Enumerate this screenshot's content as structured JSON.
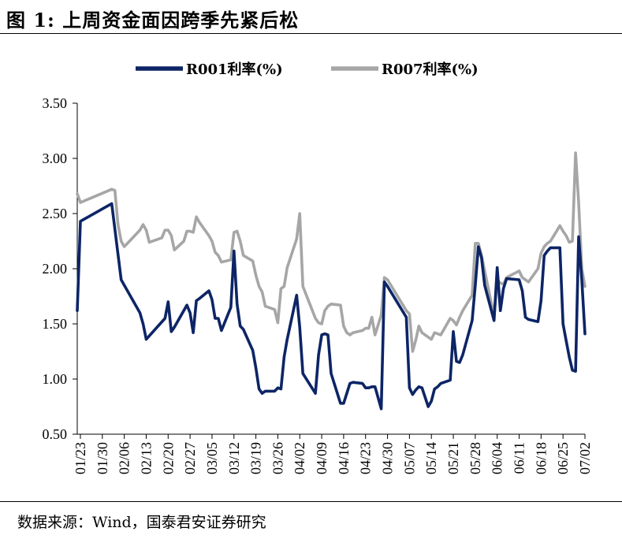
{
  "figure": {
    "title": "图 1:  上周资金面因跨季先紧后松",
    "source": "数据来源：Wind，国泰君安证券研究"
  },
  "chart_data": {
    "type": "line",
    "ylim": [
      0.5,
      3.5
    ],
    "yticks": [
      "0.50",
      "1.00",
      "1.50",
      "2.00",
      "2.50",
      "3.00",
      "3.50"
    ],
    "xtick_labels": [
      "01/23",
      "01/30",
      "02/06",
      "02/13",
      "02/20",
      "02/27",
      "03/05",
      "03/12",
      "03/19",
      "03/26",
      "04/02",
      "04/09",
      "04/16",
      "04/23",
      "04/30",
      "05/07",
      "05/14",
      "05/21",
      "05/28",
      "06/04",
      "06/11",
      "06/18",
      "06/25",
      "07/02"
    ],
    "x_start": "01/22",
    "x_end": "07/02",
    "legend_position": "top",
    "grid": false,
    "series": [
      {
        "name": "R001利率(%)",
        "color": "#0d2566",
        "points": [
          [
            "01/22",
            1.62
          ],
          [
            "01/23",
            2.43
          ],
          [
            "02/02",
            2.59
          ],
          [
            "02/05",
            1.9
          ],
          [
            "02/08",
            1.75
          ],
          [
            "02/11",
            1.6
          ],
          [
            "02/12",
            1.5
          ],
          [
            "02/13",
            1.36
          ],
          [
            "02/19",
            1.55
          ],
          [
            "02/20",
            1.7
          ],
          [
            "02/21",
            1.43
          ],
          [
            "02/22",
            1.47
          ],
          [
            "02/26",
            1.67
          ],
          [
            "02/27",
            1.6
          ],
          [
            "02/28",
            1.42
          ],
          [
            "02/29",
            1.71
          ],
          [
            "03/01",
            1.73
          ],
          [
            "03/04",
            1.8
          ],
          [
            "03/05",
            1.72
          ],
          [
            "03/06",
            1.55
          ],
          [
            "03/07",
            1.55
          ],
          [
            "03/08",
            1.44
          ],
          [
            "03/11",
            1.65
          ],
          [
            "03/12",
            2.16
          ],
          [
            "03/13",
            1.68
          ],
          [
            "03/14",
            1.48
          ],
          [
            "03/15",
            1.45
          ],
          [
            "03/18",
            1.26
          ],
          [
            "03/19",
            1.1
          ],
          [
            "03/20",
            0.91
          ],
          [
            "03/21",
            0.87
          ],
          [
            "03/22",
            0.89
          ],
          [
            "03/25",
            0.89
          ],
          [
            "03/26",
            0.92
          ],
          [
            "03/27",
            0.91
          ],
          [
            "03/28",
            1.2
          ],
          [
            "03/29",
            1.36
          ],
          [
            "04/01",
            1.76
          ],
          [
            "04/02",
            1.47
          ],
          [
            "04/03",
            1.05
          ],
          [
            "04/07",
            0.87
          ],
          [
            "04/08",
            1.22
          ],
          [
            "04/09",
            1.4
          ],
          [
            "04/10",
            1.41
          ],
          [
            "04/11",
            1.4
          ],
          [
            "04/12",
            1.05
          ],
          [
            "04/15",
            0.78
          ],
          [
            "04/16",
            0.78
          ],
          [
            "04/17",
            0.87
          ],
          [
            "04/18",
            0.96
          ],
          [
            "04/19",
            0.97
          ],
          [
            "04/22",
            0.96
          ],
          [
            "04/23",
            0.92
          ],
          [
            "04/24",
            0.92
          ],
          [
            "04/25",
            0.93
          ],
          [
            "04/26",
            0.93
          ],
          [
            "04/28",
            0.73
          ],
          [
            "04/29",
            1.88
          ],
          [
            "04/30",
            1.84
          ],
          [
            "05/06",
            1.56
          ],
          [
            "05/07",
            0.92
          ],
          [
            "05/08",
            0.86
          ],
          [
            "05/09",
            0.9
          ],
          [
            "05/10",
            0.93
          ],
          [
            "05/11",
            0.92
          ],
          [
            "05/13",
            0.75
          ],
          [
            "05/14",
            0.8
          ],
          [
            "05/15",
            0.91
          ],
          [
            "05/16",
            0.93
          ],
          [
            "05/17",
            0.96
          ],
          [
            "05/20",
            0.99
          ],
          [
            "05/21",
            1.43
          ],
          [
            "05/22",
            1.16
          ],
          [
            "05/23",
            1.15
          ],
          [
            "05/24",
            1.22
          ],
          [
            "05/27",
            1.53
          ],
          [
            "05/28",
            1.85
          ],
          [
            "05/29",
            2.2
          ],
          [
            "05/30",
            2.1
          ],
          [
            "05/31",
            1.85
          ],
          [
            "06/03",
            1.53
          ],
          [
            "06/04",
            2.01
          ],
          [
            "06/05",
            1.62
          ],
          [
            "06/06",
            1.82
          ],
          [
            "06/07",
            1.91
          ],
          [
            "06/11",
            1.9
          ],
          [
            "06/12",
            1.8
          ],
          [
            "06/13",
            1.56
          ],
          [
            "06/14",
            1.54
          ],
          [
            "06/17",
            1.52
          ],
          [
            "06/18",
            1.71
          ],
          [
            "06/19",
            2.12
          ],
          [
            "06/20",
            2.16
          ],
          [
            "06/21",
            2.19
          ],
          [
            "06/24",
            2.19
          ],
          [
            "06/25",
            1.5
          ],
          [
            "06/26",
            1.35
          ],
          [
            "06/27",
            1.2
          ],
          [
            "06/28",
            1.08
          ],
          [
            "06/29",
            1.07
          ],
          [
            "06/30",
            2.29
          ],
          [
            "07/01",
            1.9
          ],
          [
            "07/02",
            1.41
          ]
        ]
      },
      {
        "name": "R007利率(%)",
        "color": "#a6a6a6",
        "points": [
          [
            "01/22",
            2.68
          ],
          [
            "01/23",
            2.6
          ],
          [
            "02/02",
            2.72
          ],
          [
            "02/03",
            2.71
          ],
          [
            "02/04",
            2.4
          ],
          [
            "02/05",
            2.25
          ],
          [
            "02/06",
            2.2
          ],
          [
            "02/08",
            2.26
          ],
          [
            "02/11",
            2.35
          ],
          [
            "02/12",
            2.4
          ],
          [
            "02/13",
            2.35
          ],
          [
            "02/14",
            2.24
          ],
          [
            "02/18",
            2.28
          ],
          [
            "02/19",
            2.35
          ],
          [
            "02/20",
            2.35
          ],
          [
            "02/21",
            2.3
          ],
          [
            "02/22",
            2.17
          ],
          [
            "02/25",
            2.25
          ],
          [
            "02/26",
            2.34
          ],
          [
            "02/27",
            2.34
          ],
          [
            "02/28",
            2.33
          ],
          [
            "02/29",
            2.47
          ],
          [
            "03/01",
            2.42
          ],
          [
            "03/04",
            2.3
          ],
          [
            "03/05",
            2.25
          ],
          [
            "03/06",
            2.15
          ],
          [
            "03/07",
            2.12
          ],
          [
            "03/08",
            2.06
          ],
          [
            "03/11",
            2.08
          ],
          [
            "03/12",
            2.33
          ],
          [
            "03/13",
            2.34
          ],
          [
            "03/14",
            2.25
          ],
          [
            "03/15",
            2.12
          ],
          [
            "03/18",
            2.07
          ],
          [
            "03/19",
            1.94
          ],
          [
            "03/20",
            1.84
          ],
          [
            "03/21",
            1.79
          ],
          [
            "03/22",
            1.66
          ],
          [
            "03/25",
            1.63
          ],
          [
            "03/26",
            1.51
          ],
          [
            "03/27",
            1.82
          ],
          [
            "03/28",
            1.84
          ],
          [
            "03/29",
            2.01
          ],
          [
            "04/01",
            2.27
          ],
          [
            "04/02",
            2.5
          ],
          [
            "04/03",
            1.84
          ],
          [
            "04/07",
            1.55
          ],
          [
            "04/08",
            1.51
          ],
          [
            "04/09",
            1.5
          ],
          [
            "04/10",
            1.62
          ],
          [
            "04/11",
            1.66
          ],
          [
            "04/12",
            1.68
          ],
          [
            "04/15",
            1.67
          ],
          [
            "04/16",
            1.48
          ],
          [
            "04/17",
            1.42
          ],
          [
            "04/18",
            1.4
          ],
          [
            "04/19",
            1.42
          ],
          [
            "04/22",
            1.44
          ],
          [
            "04/23",
            1.46
          ],
          [
            "04/24",
            1.46
          ],
          [
            "04/25",
            1.56
          ],
          [
            "04/26",
            1.4
          ],
          [
            "04/28",
            1.58
          ],
          [
            "04/29",
            1.92
          ],
          [
            "04/30",
            1.9
          ],
          [
            "05/06",
            1.62
          ],
          [
            "05/07",
            1.59
          ],
          [
            "05/08",
            1.25
          ],
          [
            "05/09",
            1.35
          ],
          [
            "05/10",
            1.48
          ],
          [
            "05/11",
            1.42
          ],
          [
            "05/13",
            1.38
          ],
          [
            "05/14",
            1.36
          ],
          [
            "05/15",
            1.42
          ],
          [
            "05/16",
            1.41
          ],
          [
            "05/17",
            1.4
          ],
          [
            "05/20",
            1.55
          ],
          [
            "05/21",
            1.53
          ],
          [
            "05/22",
            1.49
          ],
          [
            "05/23",
            1.56
          ],
          [
            "05/24",
            1.62
          ],
          [
            "05/27",
            1.76
          ],
          [
            "05/28",
            2.23
          ],
          [
            "05/29",
            2.23
          ],
          [
            "05/30",
            2.12
          ],
          [
            "05/31",
            1.98
          ],
          [
            "06/03",
            1.57
          ],
          [
            "06/04",
            1.9
          ],
          [
            "06/05",
            1.87
          ],
          [
            "06/06",
            1.86
          ],
          [
            "06/07",
            1.92
          ],
          [
            "06/11",
            1.98
          ],
          [
            "06/12",
            1.92
          ],
          [
            "06/13",
            1.9
          ],
          [
            "06/14",
            1.88
          ],
          [
            "06/17",
            2.0
          ],
          [
            "06/18",
            2.14
          ],
          [
            "06/19",
            2.2
          ],
          [
            "06/20",
            2.23
          ],
          [
            "06/21",
            2.25
          ],
          [
            "06/24",
            2.39
          ],
          [
            "06/25",
            2.34
          ],
          [
            "06/26",
            2.3
          ],
          [
            "06/27",
            2.24
          ],
          [
            "06/28",
            2.25
          ],
          [
            "06/29",
            3.05
          ],
          [
            "06/30",
            2.6
          ],
          [
            "07/01",
            2.0
          ],
          [
            "07/02",
            1.84
          ]
        ]
      }
    ]
  }
}
